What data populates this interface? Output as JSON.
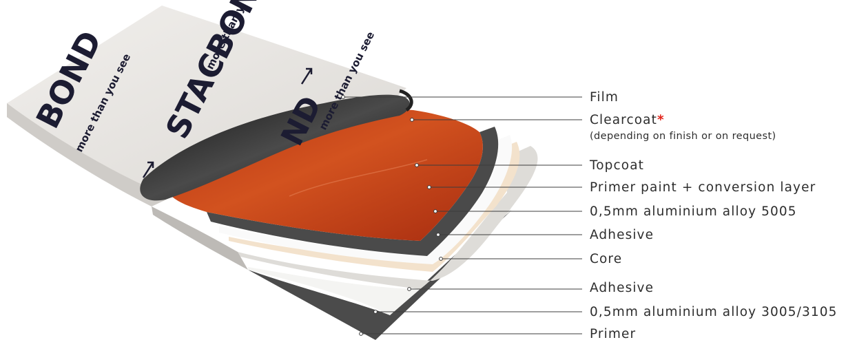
{
  "layers": [
    {
      "id": "film",
      "label": "Film"
    },
    {
      "id": "clearcoat",
      "label": "Clearcoat",
      "marker": "*",
      "note": "(depending on finish or on request)"
    },
    {
      "id": "topcoat",
      "label": "Topcoat"
    },
    {
      "id": "primer-paint",
      "label": "Primer paint + conversion layer"
    },
    {
      "id": "aluminium-top",
      "label": "0,5mm aluminium alloy 5005"
    },
    {
      "id": "adhesive-top",
      "label": "Adhesive"
    },
    {
      "id": "core",
      "label": "Core"
    },
    {
      "id": "adhesive-bottom",
      "label": "Adhesive"
    },
    {
      "id": "aluminium-bottom",
      "label": "0,5mm aluminium alloy 3005/3105"
    },
    {
      "id": "primer",
      "label": "Primer"
    }
  ],
  "film_print": {
    "brand": "STACBOND",
    "brand_partial_top": "STACBON",
    "brand_partial_left": "BOND",
    "brand_partial_mid": "ND",
    "slogan": "more than you see",
    "slogan_partial": "more than y"
  },
  "colors": {
    "film": "#e9e7e4",
    "topcoat": "#c7421a",
    "primer_paint": "#4a4a4a",
    "aluminium": "#f4f4f2",
    "adhesive": "#f3e2cc",
    "core": "#dedcd8",
    "asterisk": "#e2231a"
  }
}
